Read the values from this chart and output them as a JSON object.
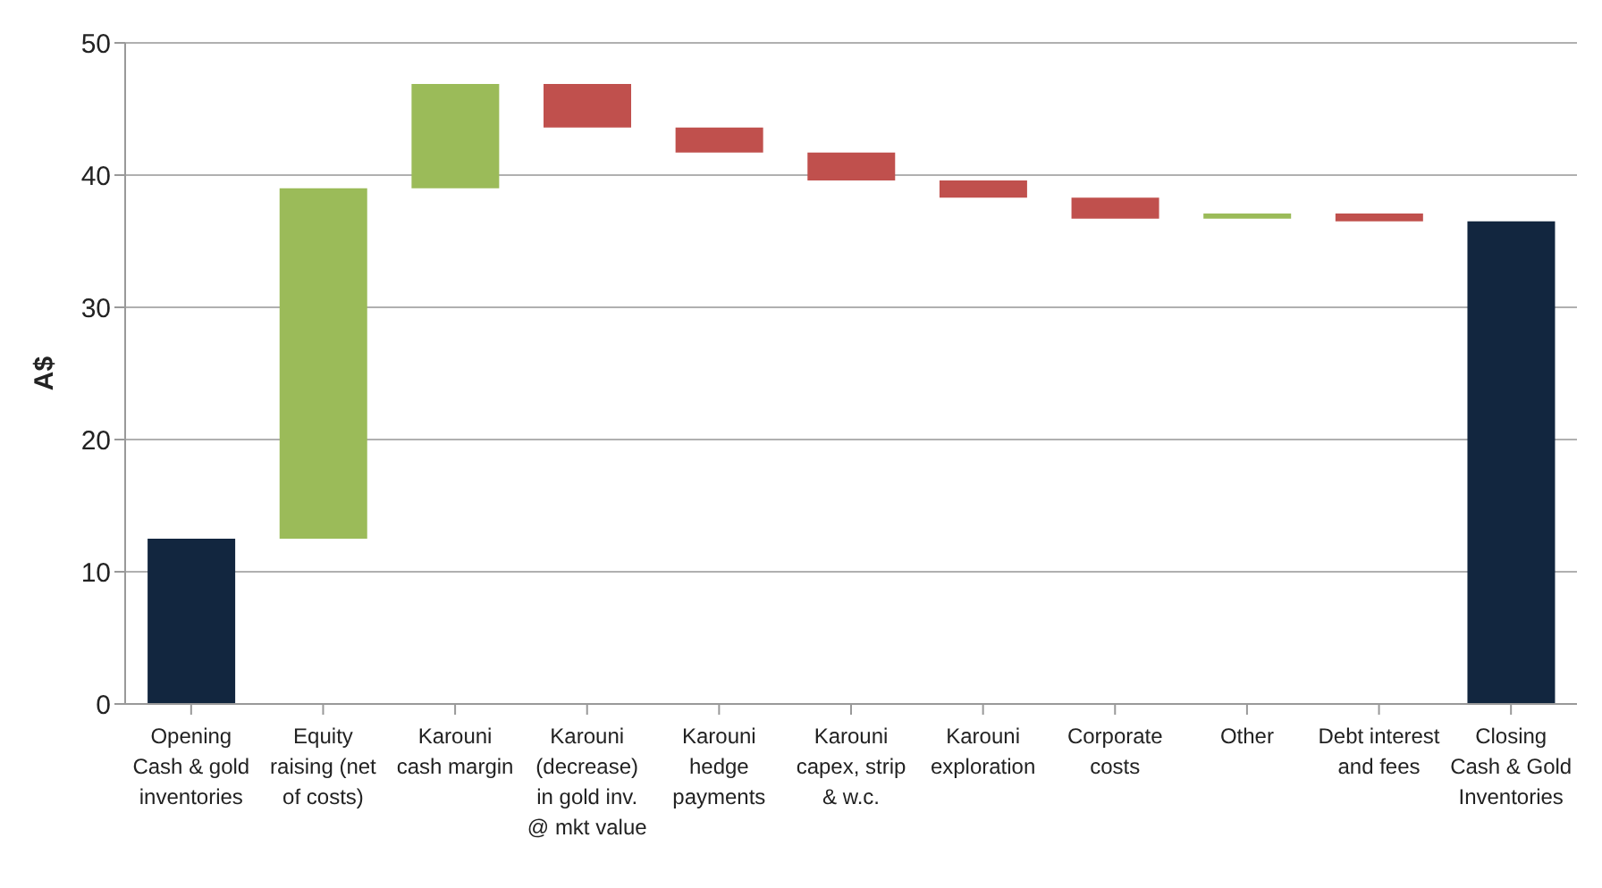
{
  "chart_data": {
    "type": "bar",
    "ylabel": "A$",
    "categories": [
      "Opening Cash & gold inventories",
      "Equity raising (net of costs)",
      "Karouni cash margin",
      "Karouni (decrease) in gold inv. @ mkt value",
      "Karouni hedge payments",
      "Karouni capex, strip & w.c.",
      "Karouni exploration",
      "Corporate costs",
      "Other",
      "Debt interest and fees",
      "Closing Cash & Gold Inventories"
    ],
    "base": [
      0,
      12.5,
      39,
      46.9,
      43.6,
      41.7,
      39.6,
      38.3,
      36.7,
      37.1,
      0
    ],
    "values": [
      12.5,
      26.5,
      7.9,
      -3.3,
      -1.9,
      -2.1,
      -1.3,
      -1.6,
      0.4,
      -0.6,
      36.5
    ],
    "colors": [
      "#12263f",
      "#9bbb59",
      "#9bbb59",
      "#c0504d",
      "#c0504d",
      "#c0504d",
      "#c0504d",
      "#c0504d",
      "#9bbb59",
      "#c0504d",
      "#12263f"
    ],
    "ylim": [
      0,
      50
    ],
    "yticks": [
      0,
      10,
      20,
      30,
      40,
      50
    ],
    "grid": "y"
  }
}
